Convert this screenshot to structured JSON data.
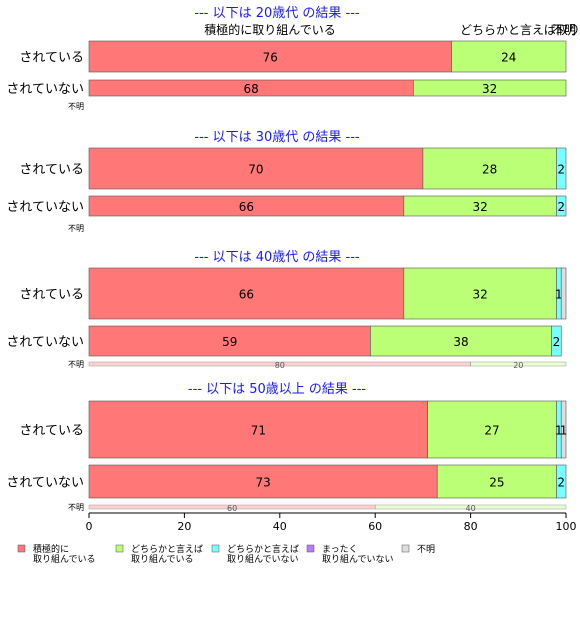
{
  "colors": {
    "positive": "#ff7777",
    "somewhat_positive": "#bbff77",
    "somewhat_negative": "#77ffff",
    "negative": "#bb77ff",
    "unknown": "#dddddd",
    "group_title": "#1a1aff",
    "bar_border": "#555555"
  },
  "chart_data": {
    "type": "bar",
    "orientation": "horizontal",
    "stacked": true,
    "xlim": [
      0,
      100
    ],
    "x_ticks": [
      "0",
      "20",
      "40",
      "60",
      "80",
      "100"
    ],
    "top_header": {
      "left": "積極的に取り組んでいる",
      "right": "どちらかと言えば取り組んでいる",
      "right_overlap": "不明"
    },
    "legend": [
      {
        "key": "positive",
        "line1": "積極的に",
        "line2": "取り組んでいる"
      },
      {
        "key": "somewhat_positive",
        "line1": "どちらかと言えば",
        "line2": "取り組んでいる"
      },
      {
        "key": "somewhat_negative",
        "line1": "どちらかと言えば",
        "line2": "取り組んでいない"
      },
      {
        "key": "negative",
        "line1": "まったく",
        "line2": "取り組んでいない"
      },
      {
        "key": "unknown",
        "line1": "不明",
        "line2": ""
      }
    ],
    "groups": [
      {
        "title": "--- 以下は 20歳代 の結果 ---",
        "bars": [
          {
            "label": "されている",
            "values": [
              76,
              24,
              0,
              0,
              0
            ],
            "shown": [
              "76",
              "24",
              "",
              "",
              ""
            ]
          },
          {
            "label": "されていない",
            "values": [
              68,
              32,
              0,
              0,
              0
            ],
            "shown": [
              "68",
              "32",
              "",
              "",
              ""
            ]
          }
        ],
        "unknown_label": "不明",
        "unknown_bar": null
      },
      {
        "title": "--- 以下は 30歳代 の結果 ---",
        "bars": [
          {
            "label": "されている",
            "values": [
              70,
              28,
              2,
              0,
              0
            ],
            "shown": [
              "70",
              "28",
              "2",
              "",
              ""
            ]
          },
          {
            "label": "されていない",
            "values": [
              66,
              32,
              2,
              0,
              0
            ],
            "shown": [
              "66",
              "32",
              "2",
              "",
              ""
            ]
          }
        ],
        "unknown_label": "不明",
        "unknown_bar": null
      },
      {
        "title": "--- 以下は 40歳代 の結果 ---",
        "bars": [
          {
            "label": "されている",
            "values": [
              66,
              32,
              1,
              0,
              1
            ],
            "shown": [
              "66",
              "32",
              "1",
              "",
              ""
            ]
          },
          {
            "label": "されていない",
            "values": [
              59,
              38,
              2,
              0,
              0
            ],
            "shown": [
              "59",
              "38",
              "2",
              "",
              ""
            ]
          }
        ],
        "unknown_label": "不明",
        "unknown_bar": {
          "values": [
            80,
            20,
            0,
            0,
            0
          ],
          "shown": [
            "80",
            "20",
            "",
            "",
            ""
          ]
        }
      },
      {
        "title": "--- 以下は 50歳以上 の結果 ---",
        "bars": [
          {
            "label": "されている",
            "values": [
              71,
              27,
              1,
              0,
              1
            ],
            "shown": [
              "71",
              "27",
              "1",
              "",
              "1"
            ]
          },
          {
            "label": "されていない",
            "values": [
              73,
              25,
              2,
              0,
              0
            ],
            "shown": [
              "73",
              "25",
              "2",
              "",
              ""
            ]
          }
        ],
        "unknown_label": "不明",
        "unknown_bar": {
          "values": [
            60,
            40,
            0,
            0,
            0
          ],
          "shown": [
            "60",
            "40",
            "",
            "",
            ""
          ]
        }
      }
    ]
  }
}
